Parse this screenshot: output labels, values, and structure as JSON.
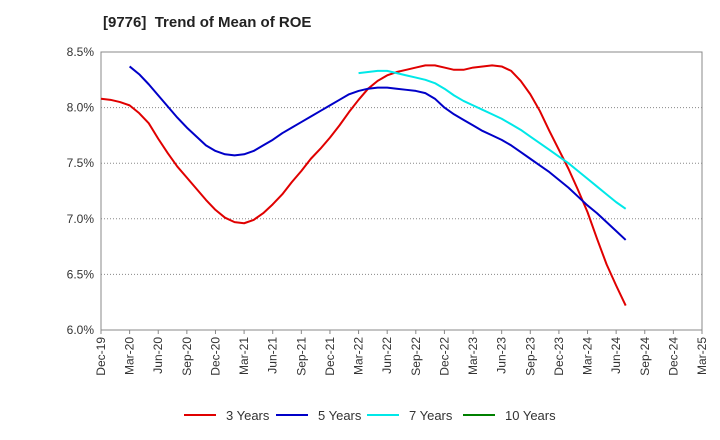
{
  "chart_data": {
    "type": "line",
    "title": "[9776]  Trend of Mean of ROE",
    "xlabel": "",
    "ylabel": "",
    "ylim": [
      6.0,
      8.5
    ],
    "yticks": [
      "8.5%",
      "8.0%",
      "7.5%",
      "7.0%",
      "6.5%",
      "6.0%"
    ],
    "yticks_values": [
      8.5,
      8.0,
      7.5,
      7.0,
      6.5,
      6.0
    ],
    "xticks": [
      "Dec-19",
      "Mar-20",
      "Jun-20",
      "Sep-20",
      "Dec-20",
      "Mar-21",
      "Jun-21",
      "Sep-21",
      "Dec-21",
      "Mar-22",
      "Jun-22",
      "Sep-22",
      "Dec-22",
      "Mar-23",
      "Jun-23",
      "Sep-23",
      "Dec-23",
      "Mar-24",
      "Jun-24",
      "Sep-24",
      "Dec-24",
      "Mar-25"
    ],
    "grid": "horizontal dotted",
    "legend_position": "bottom",
    "series": [
      {
        "name": "3 Years",
        "color": "#e00000",
        "points": [
          [
            0,
            8.08
          ],
          [
            1,
            8.07
          ],
          [
            2,
            8.05
          ],
          [
            3,
            8.02
          ],
          [
            4,
            7.95
          ],
          [
            5,
            7.86
          ],
          [
            6,
            7.72
          ],
          [
            7,
            7.59
          ],
          [
            8,
            7.47
          ],
          [
            9,
            7.37
          ],
          [
            10,
            7.27
          ],
          [
            11,
            7.17
          ],
          [
            12,
            7.08
          ],
          [
            13,
            7.01
          ],
          [
            14,
            6.97
          ],
          [
            15,
            6.96
          ],
          [
            16,
            6.99
          ],
          [
            17,
            7.05
          ],
          [
            18,
            7.13
          ],
          [
            19,
            7.22
          ],
          [
            20,
            7.33
          ],
          [
            21,
            7.43
          ],
          [
            22,
            7.54
          ],
          [
            23,
            7.63
          ],
          [
            24,
            7.73
          ],
          [
            25,
            7.84
          ],
          [
            26,
            7.96
          ],
          [
            27,
            8.07
          ],
          [
            28,
            8.17
          ],
          [
            29,
            8.24
          ],
          [
            30,
            8.29
          ],
          [
            31,
            8.32
          ],
          [
            32,
            8.34
          ],
          [
            33,
            8.36
          ],
          [
            34,
            8.38
          ],
          [
            35,
            8.38
          ],
          [
            36,
            8.36
          ],
          [
            37,
            8.34
          ],
          [
            38,
            8.34
          ],
          [
            39,
            8.36
          ],
          [
            40,
            8.37
          ],
          [
            41,
            8.38
          ],
          [
            42,
            8.37
          ],
          [
            43,
            8.33
          ],
          [
            44,
            8.24
          ],
          [
            45,
            8.12
          ],
          [
            46,
            7.97
          ],
          [
            47,
            7.79
          ],
          [
            48,
            7.62
          ],
          [
            49,
            7.45
          ],
          [
            50,
            7.26
          ],
          [
            51,
            7.06
          ],
          [
            52,
            6.82
          ],
          [
            53,
            6.59
          ],
          [
            54,
            6.4
          ],
          [
            55,
            6.22
          ]
        ]
      },
      {
        "name": "5 Years",
        "color": "#0000c8",
        "points": [
          [
            3,
            8.37
          ],
          [
            4,
            8.3
          ],
          [
            5,
            8.21
          ],
          [
            6,
            8.11
          ],
          [
            7,
            8.01
          ],
          [
            8,
            7.91
          ],
          [
            9,
            7.82
          ],
          [
            10,
            7.74
          ],
          [
            11,
            7.66
          ],
          [
            12,
            7.61
          ],
          [
            13,
            7.58
          ],
          [
            14,
            7.57
          ],
          [
            15,
            7.58
          ],
          [
            16,
            7.61
          ],
          [
            17,
            7.66
          ],
          [
            18,
            7.71
          ],
          [
            19,
            7.77
          ],
          [
            20,
            7.82
          ],
          [
            21,
            7.87
          ],
          [
            22,
            7.92
          ],
          [
            23,
            7.97
          ],
          [
            24,
            8.02
          ],
          [
            25,
            8.07
          ],
          [
            26,
            8.12
          ],
          [
            27,
            8.15
          ],
          [
            28,
            8.17
          ],
          [
            29,
            8.18
          ],
          [
            30,
            8.18
          ],
          [
            31,
            8.17
          ],
          [
            32,
            8.16
          ],
          [
            33,
            8.15
          ],
          [
            34,
            8.13
          ],
          [
            35,
            8.08
          ],
          [
            36,
            8.0
          ],
          [
            37,
            7.94
          ],
          [
            38,
            7.89
          ],
          [
            39,
            7.84
          ],
          [
            40,
            7.79
          ],
          [
            41,
            7.75
          ],
          [
            42,
            7.71
          ],
          [
            43,
            7.66
          ],
          [
            44,
            7.6
          ],
          [
            45,
            7.54
          ],
          [
            46,
            7.48
          ],
          [
            47,
            7.42
          ],
          [
            48,
            7.35
          ],
          [
            49,
            7.28
          ],
          [
            50,
            7.2
          ],
          [
            51,
            7.12
          ],
          [
            52,
            7.05
          ],
          [
            53,
            6.97
          ],
          [
            54,
            6.89
          ],
          [
            55,
            6.81
          ]
        ]
      },
      {
        "name": "7 Years",
        "color": "#00e8e8",
        "points": [
          [
            27,
            8.31
          ],
          [
            28,
            8.32
          ],
          [
            29,
            8.33
          ],
          [
            30,
            8.33
          ],
          [
            31,
            8.31
          ],
          [
            32,
            8.29
          ],
          [
            33,
            8.27
          ],
          [
            34,
            8.25
          ],
          [
            35,
            8.22
          ],
          [
            36,
            8.17
          ],
          [
            37,
            8.11
          ],
          [
            38,
            8.06
          ],
          [
            39,
            8.02
          ],
          [
            40,
            7.98
          ],
          [
            41,
            7.94
          ],
          [
            42,
            7.9
          ],
          [
            43,
            7.85
          ],
          [
            44,
            7.8
          ],
          [
            45,
            7.74
          ],
          [
            46,
            7.68
          ],
          [
            47,
            7.62
          ],
          [
            48,
            7.56
          ],
          [
            49,
            7.5
          ],
          [
            50,
            7.43
          ],
          [
            51,
            7.36
          ],
          [
            52,
            7.29
          ],
          [
            53,
            7.22
          ],
          [
            54,
            7.15
          ],
          [
            55,
            7.09
          ]
        ]
      },
      {
        "name": "10 Years",
        "color": "#008000",
        "points": []
      }
    ]
  }
}
